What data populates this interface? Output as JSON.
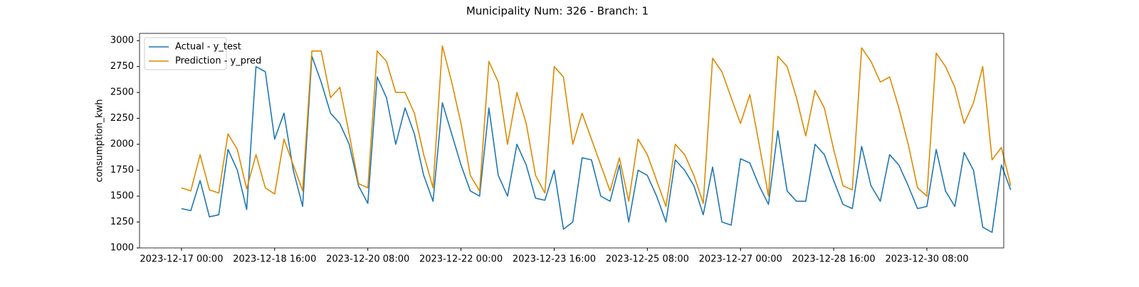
{
  "chart_data": {
    "type": "line",
    "title": "Municipality Num: 326 - Branch: 1",
    "y_label": "consumption_kwh",
    "x": [
      "2023-12-17 00:00",
      "2023-12-17 04:00",
      "2023-12-17 08:00",
      "2023-12-17 12:00",
      "2023-12-17 16:00",
      "2023-12-17 20:00",
      "2023-12-18 00:00",
      "2023-12-18 04:00",
      "2023-12-18 08:00",
      "2023-12-18 12:00",
      "2023-12-18 16:00",
      "2023-12-18 20:00",
      "2023-12-19 00:00",
      "2023-12-19 04:00",
      "2023-12-19 08:00",
      "2023-12-19 12:00",
      "2023-12-19 16:00",
      "2023-12-19 20:00",
      "2023-12-20 00:00",
      "2023-12-20 04:00",
      "2023-12-20 08:00",
      "2023-12-20 12:00",
      "2023-12-20 16:00",
      "2023-12-20 20:00",
      "2023-12-21 00:00",
      "2023-12-21 04:00",
      "2023-12-21 08:00",
      "2023-12-21 12:00",
      "2023-12-21 16:00",
      "2023-12-21 20:00",
      "2023-12-22 00:00",
      "2023-12-22 04:00",
      "2023-12-22 08:00",
      "2023-12-22 12:00",
      "2023-12-22 16:00",
      "2023-12-22 20:00",
      "2023-12-23 00:00",
      "2023-12-23 04:00",
      "2023-12-23 08:00",
      "2023-12-23 12:00",
      "2023-12-23 16:00",
      "2023-12-23 20:00",
      "2023-12-24 00:00",
      "2023-12-24 04:00",
      "2023-12-24 08:00",
      "2023-12-24 12:00",
      "2023-12-24 16:00",
      "2023-12-24 20:00",
      "2023-12-25 00:00",
      "2023-12-25 04:00",
      "2023-12-25 08:00",
      "2023-12-25 12:00",
      "2023-12-25 16:00",
      "2023-12-25 20:00",
      "2023-12-26 00:00",
      "2023-12-26 04:00",
      "2023-12-26 08:00",
      "2023-12-26 12:00",
      "2023-12-26 16:00",
      "2023-12-26 20:00",
      "2023-12-27 00:00",
      "2023-12-27 04:00",
      "2023-12-27 08:00",
      "2023-12-27 12:00",
      "2023-12-27 16:00",
      "2023-12-27 20:00",
      "2023-12-28 00:00",
      "2023-12-28 04:00",
      "2023-12-28 08:00",
      "2023-12-28 12:00",
      "2023-12-28 16:00",
      "2023-12-28 20:00",
      "2023-12-29 00:00",
      "2023-12-29 04:00",
      "2023-12-29 08:00",
      "2023-12-29 12:00",
      "2023-12-29 16:00",
      "2023-12-29 20:00",
      "2023-12-30 00:00",
      "2023-12-30 04:00",
      "2023-12-30 08:00",
      "2023-12-30 12:00",
      "2023-12-30 16:00",
      "2023-12-30 20:00",
      "2023-12-31 00:00",
      "2023-12-31 04:00",
      "2023-12-31 08:00",
      "2023-12-31 12:00",
      "2023-12-31 16:00",
      "2023-12-31 20:00"
    ],
    "series": [
      {
        "name": "Actual - y_test",
        "color": "#1f77b4",
        "values": [
          1380,
          1360,
          1650,
          1300,
          1320,
          1950,
          1750,
          1370,
          2750,
          2700,
          2050,
          2300,
          1750,
          1400,
          2850,
          2600,
          2300,
          2200,
          2000,
          1600,
          1430,
          2650,
          2450,
          2000,
          2350,
          2100,
          1700,
          1450,
          2400,
          2100,
          1800,
          1550,
          1500,
          2350,
          1700,
          1500,
          2000,
          1800,
          1480,
          1460,
          1750,
          1180,
          1250,
          1870,
          1850,
          1500,
          1450,
          1800,
          1250,
          1750,
          1700,
          1500,
          1250,
          1850,
          1750,
          1600,
          1320,
          1780,
          1250,
          1220,
          1860,
          1820,
          1600,
          1420,
          2130,
          1550,
          1450,
          1450,
          2000,
          1900,
          1650,
          1420,
          1380,
          1980,
          1600,
          1450,
          1900,
          1800,
          1600,
          1380,
          1400,
          1950,
          1550,
          1400,
          1920,
          1750,
          1200,
          1150,
          1800,
          1560
        ]
      },
      {
        "name": "Prediction - y_pred",
        "color": "#dc8a00",
        "values": [
          1580,
          1550,
          1900,
          1560,
          1530,
          2100,
          1950,
          1570,
          1900,
          1580,
          1520,
          2050,
          1800,
          1550,
          2900,
          2900,
          2450,
          2550,
          2100,
          1620,
          1580,
          2900,
          2800,
          2500,
          2500,
          2300,
          1900,
          1580,
          2950,
          2600,
          2200,
          1700,
          1550,
          2800,
          2600,
          2000,
          2500,
          2200,
          1700,
          1530,
          2750,
          2650,
          2000,
          2300,
          2050,
          1800,
          1550,
          1870,
          1450,
          2050,
          1900,
          1650,
          1400,
          2000,
          1900,
          1700,
          1430,
          2830,
          2700,
          2450,
          2200,
          2480,
          2000,
          1500,
          2850,
          2750,
          2450,
          2080,
          2520,
          2350,
          1950,
          1600,
          1560,
          2930,
          2800,
          2600,
          2650,
          2350,
          2000,
          1580,
          1500,
          2880,
          2750,
          2550,
          2200,
          2400,
          2750,
          1850,
          1970,
          1600
        ]
      }
    ],
    "xlim": [
      "2023-12-16 06:00",
      "2023-12-31 17:00"
    ],
    "xticks": [
      "2023-12-17 00:00",
      "2023-12-18 16:00",
      "2023-12-20 08:00",
      "2023-12-22 00:00",
      "2023-12-23 16:00",
      "2023-12-25 08:00",
      "2023-12-27 00:00",
      "2023-12-28 16:00",
      "2023-12-30 08:00"
    ],
    "ylim": [
      1000,
      3070
    ],
    "yticks": [
      1000,
      1250,
      1500,
      1750,
      2000,
      2250,
      2500,
      2750,
      3000
    ],
    "legend": "upper left"
  }
}
